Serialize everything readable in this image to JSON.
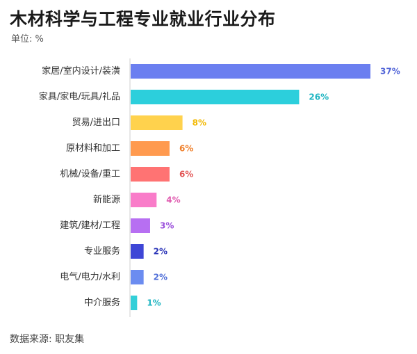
{
  "header": {
    "title": "木材科学与工程专业就业行业分布",
    "subtitle": "单位: %"
  },
  "footer": {
    "source": "数据来源: 职友集"
  },
  "chart_data": {
    "type": "bar",
    "orientation": "horizontal",
    "title": "木材科学与工程专业就业行业分布",
    "unit": "%",
    "categories": [
      "家居/室内设计/装潢",
      "家具/家电/玩具/礼品",
      "贸易/进出口",
      "原材料和加工",
      "机械/设备/重工",
      "新能源",
      "建筑/建材/工程",
      "专业服务",
      "电气/电力/水利",
      "中介服务"
    ],
    "values": [
      37,
      26,
      8,
      6,
      6,
      4,
      3,
      2,
      2,
      1
    ],
    "value_labels": [
      "37%",
      "26%",
      "8%",
      "6%",
      "6%",
      "4%",
      "3%",
      "2%",
      "2%",
      "1%"
    ],
    "bar_colors": [
      "#6b7ff0",
      "#2ccfdc",
      "#ffd24d",
      "#ff9a4f",
      "#ff7373",
      "#f97cc9",
      "#b76ff2",
      "#3e46d6",
      "#6b8cf0",
      "#33cfd8"
    ],
    "label_colors": [
      "#5265d8",
      "#1fb5c2",
      "#f2b800",
      "#ef7f2a",
      "#e25555",
      "#e05cb0",
      "#9a4fdb",
      "#2b35b8",
      "#4f6ed8",
      "#1fb5c2"
    ],
    "xlim": [
      0,
      37
    ],
    "grid": false,
    "legend": "none"
  }
}
